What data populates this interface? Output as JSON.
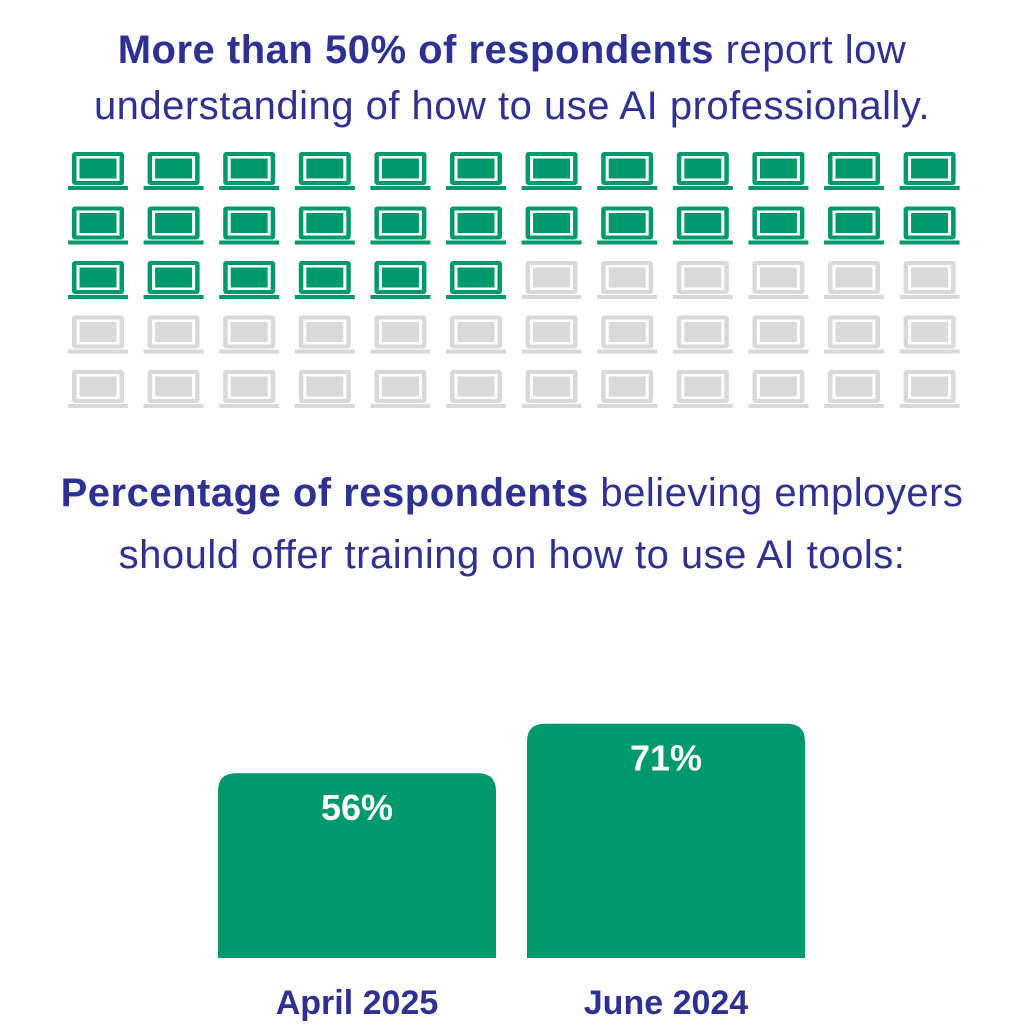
{
  "headline1": {
    "bold": "More than 50% of respondents",
    "rest": " report low understanding of how to use AI professionally."
  },
  "waffle": {
    "icon": "laptop-icon",
    "total": 60,
    "columns": 12,
    "highlighted": 30,
    "highlight_color": "#00996B",
    "base_color": "#D9D9D9"
  },
  "headline2": {
    "bold": "Percentage of respondents",
    "rest": " believing employers should offer training on how to use AI tools:"
  },
  "chart_data": {
    "type": "bar",
    "categories": [
      "April 2025",
      "June 2024"
    ],
    "values": [
      56,
      71
    ],
    "value_labels": [
      "56%",
      "71%"
    ],
    "title": "",
    "xlabel": "",
    "ylabel": "",
    "ylim": [
      0,
      100
    ],
    "bar_color": "#00996B"
  },
  "colors": {
    "headline": "#2E3192",
    "bar": "#00996B",
    "bar_label": "#FFFFFF"
  }
}
